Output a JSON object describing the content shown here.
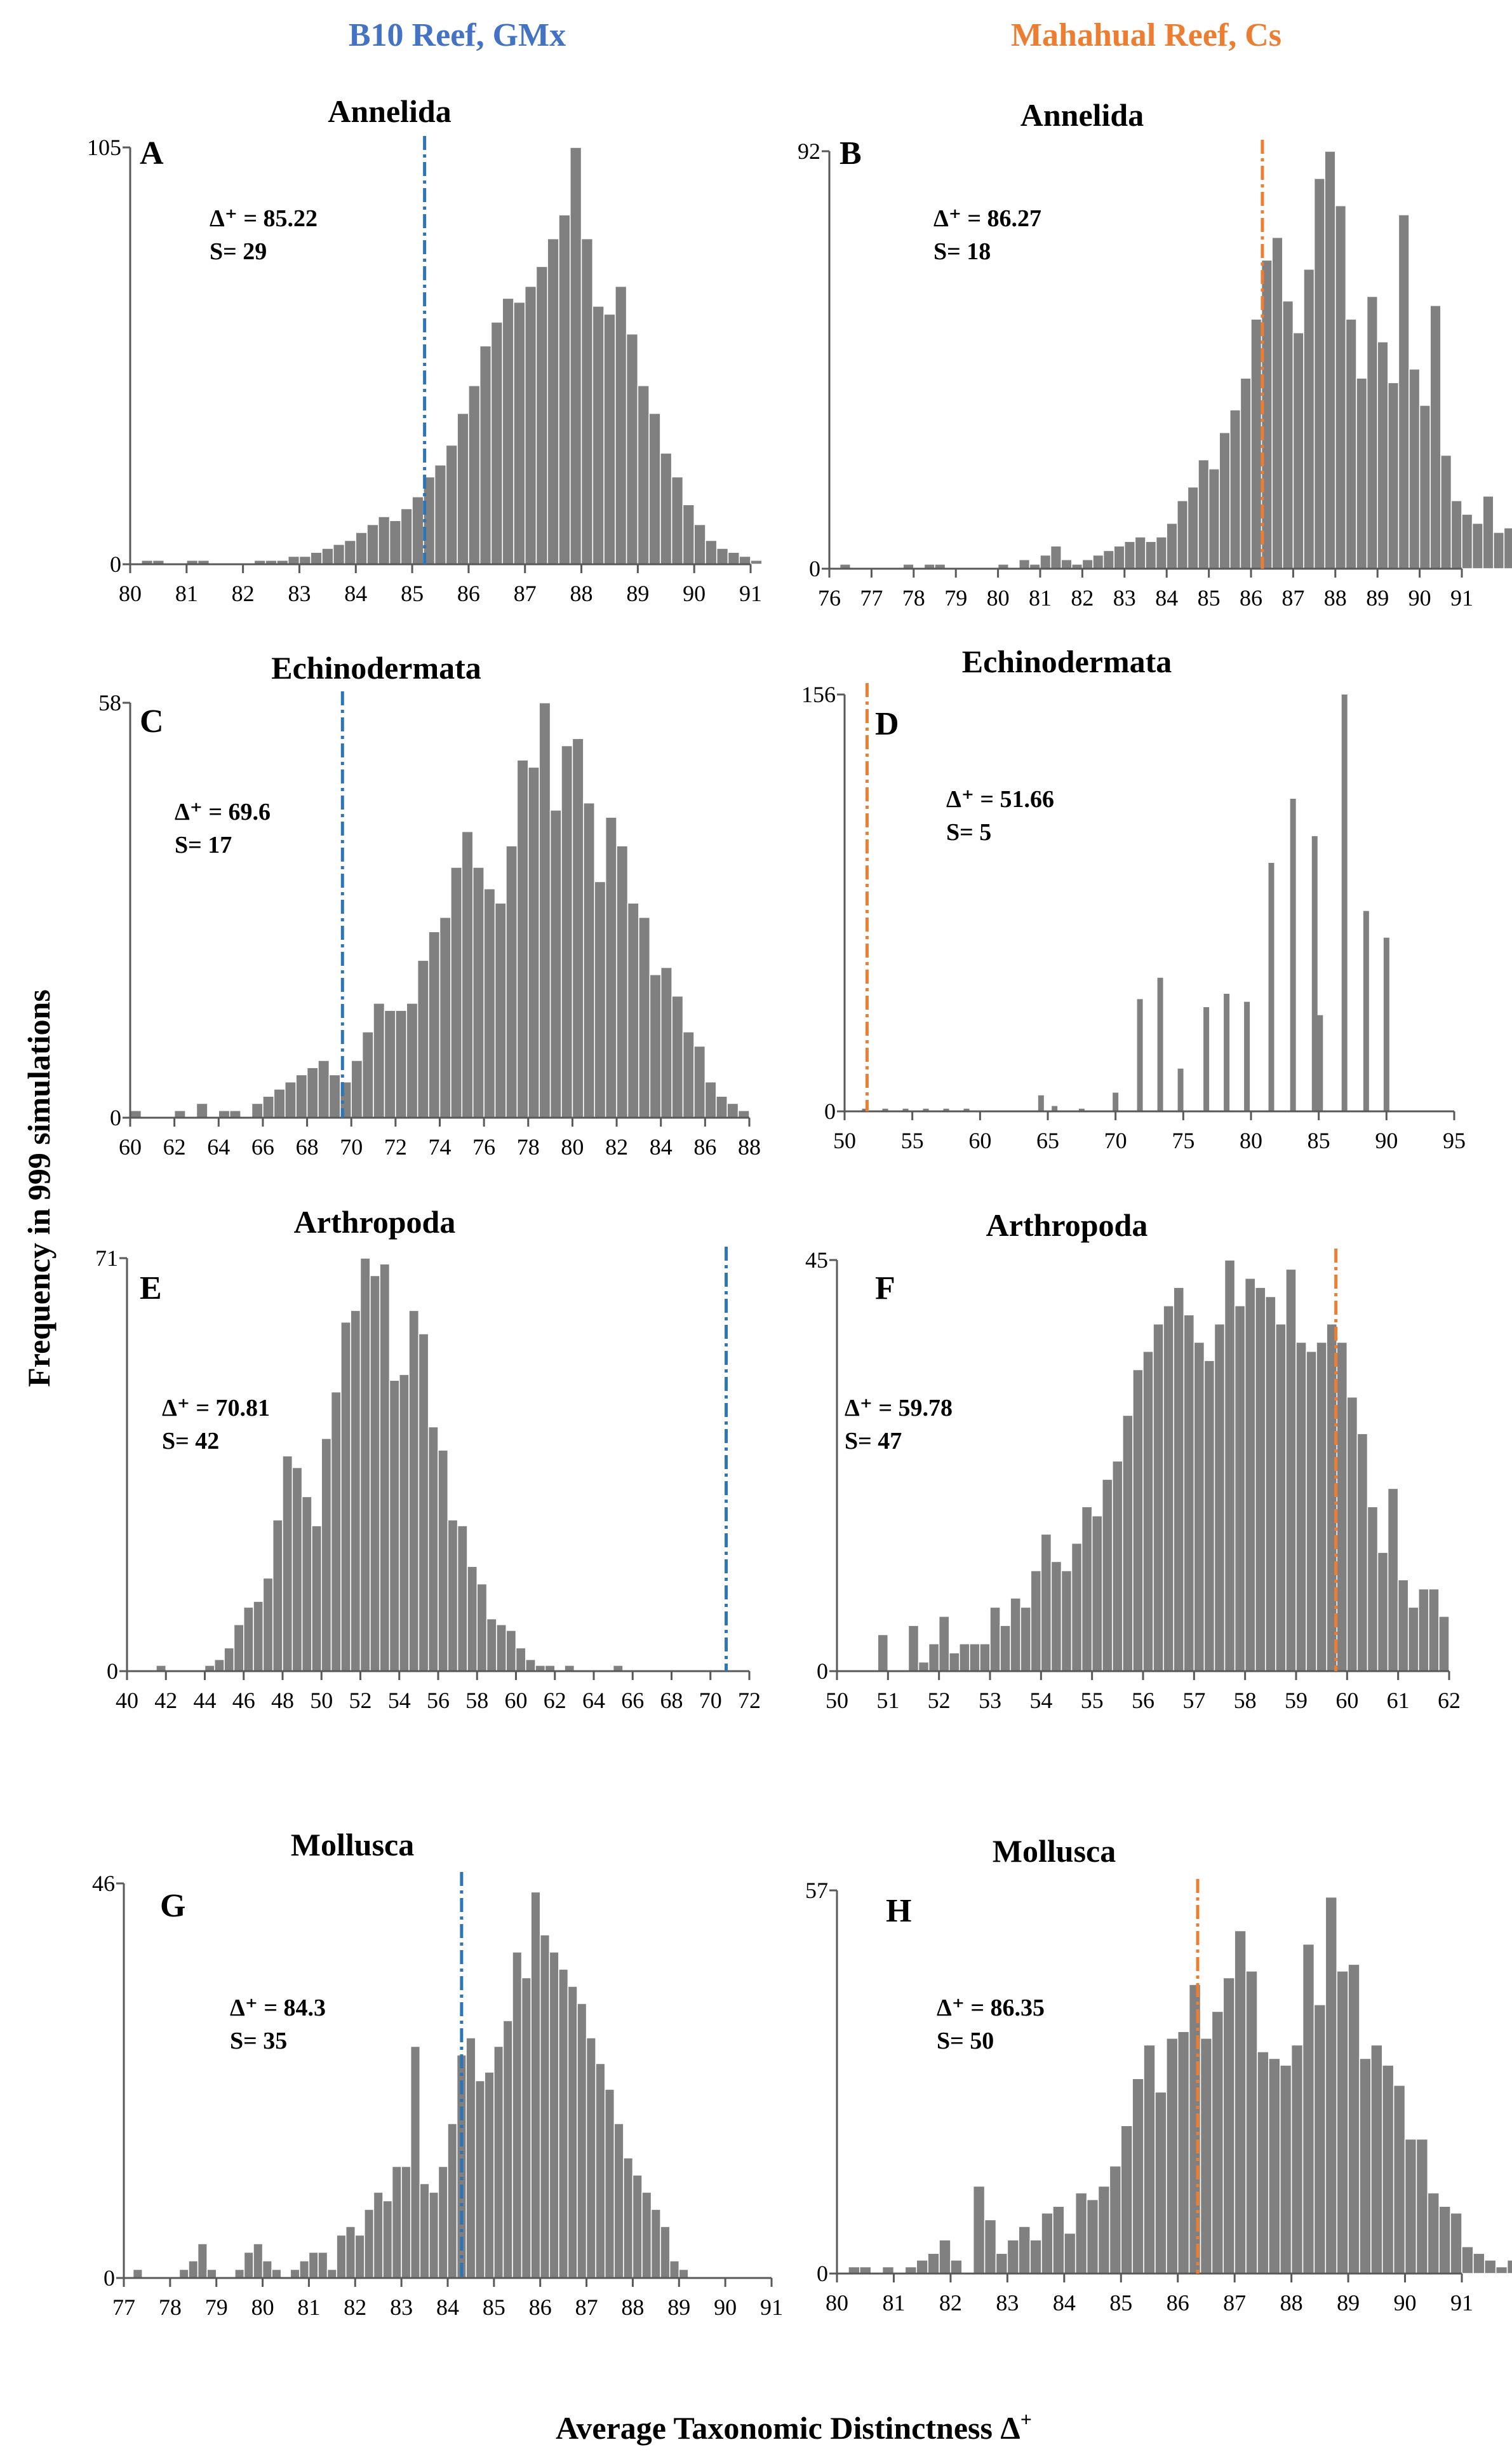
{
  "figure": {
    "left_header": "B10 Reef, GMx",
    "right_header": "Mahahual Reef, Cs",
    "y_label": "Frequency in 999 simulations",
    "x_label": "Average Taxonomic Distinctness Δ",
    "x_label_sup": "+"
  },
  "colors": {
    "bar": "#808080",
    "bar_edge": "#ffffff",
    "left": "#4472c4",
    "right": "#ed7d31",
    "line_left": "#2e75b6",
    "line_right": "#ed7d31",
    "axis": "#595959"
  },
  "chart_data": [
    {
      "id": "A",
      "type": "bar",
      "title": "Annelida",
      "delta_text": "Δ⁺ = 85.22",
      "s_text": "S= 29",
      "observed": 85.22,
      "xlim": [
        80,
        91
      ],
      "ylim": [
        0,
        105
      ],
      "xticks": [
        80,
        81,
        82,
        83,
        84,
        85,
        86,
        87,
        88,
        89,
        90,
        91
      ],
      "yticks": [
        0,
        105
      ],
      "bin_start": 80.0,
      "bin_width": 0.2,
      "values": [
        0,
        1,
        1,
        0,
        0,
        1,
        1,
        0,
        0,
        0,
        0,
        1,
        1,
        1,
        2,
        2,
        3,
        4,
        5,
        6,
        8,
        10,
        12,
        11,
        14,
        17,
        22,
        25,
        30,
        38,
        45,
        55,
        61,
        67,
        66,
        70,
        75,
        82,
        88,
        105,
        82,
        65,
        63,
        70,
        58,
        45,
        38,
        28,
        22,
        15,
        10,
        6,
        4,
        3,
        2,
        1,
        0
      ]
    },
    {
      "id": "B",
      "type": "bar",
      "title": "Annelida",
      "delta_text": "Δ⁺ = 86.27",
      "s_text": "S= 18",
      "observed": 86.27,
      "xlim": [
        76,
        91
      ],
      "ylim": [
        0,
        92
      ],
      "xticks": [
        76,
        77,
        78,
        79,
        80,
        81,
        82,
        83,
        84,
        85,
        86,
        87,
        88,
        89,
        90,
        91
      ],
      "yticks": [
        0,
        92
      ],
      "bin_start": 76.0,
      "bin_width": 0.25,
      "values": [
        0,
        1,
        0,
        0,
        0,
        0,
        0,
        1,
        0,
        1,
        1,
        0,
        0,
        0,
        0,
        0,
        1,
        0,
        2,
        1,
        3,
        5,
        2,
        1,
        2,
        3,
        4,
        5,
        6,
        7,
        6,
        7,
        10,
        15,
        18,
        24,
        22,
        30,
        35,
        42,
        55,
        68,
        73,
        59,
        52,
        66,
        86,
        92,
        80,
        55,
        42,
        60,
        50,
        41,
        78,
        44,
        36,
        58,
        25,
        15,
        12,
        10,
        16,
        8,
        9,
        3,
        0
      ]
    },
    {
      "id": "C",
      "type": "bar",
      "title": "Echinodermata",
      "delta_text": "Δ⁺ = 69.6",
      "s_text": "S= 17",
      "observed": 69.6,
      "xlim": [
        60,
        88
      ],
      "ylim": [
        0,
        58
      ],
      "xticks": [
        60,
        62,
        64,
        66,
        68,
        70,
        72,
        74,
        76,
        78,
        80,
        82,
        84,
        86,
        88
      ],
      "yticks": [
        0,
        58
      ],
      "bin_start": 60.0,
      "bin_width": 0.5,
      "values": [
        1,
        0,
        0,
        0,
        1,
        0,
        2,
        0,
        1,
        1,
        0,
        2,
        3,
        4,
        5,
        6,
        7,
        8,
        6,
        5,
        8,
        12,
        16,
        15,
        15,
        16,
        22,
        26,
        28,
        35,
        40,
        35,
        32,
        30,
        38,
        50,
        49,
        58,
        43,
        52,
        53,
        44,
        33,
        42,
        38,
        30,
        28,
        20,
        21,
        17,
        12,
        10,
        5,
        3,
        2,
        1,
        0
      ]
    },
    {
      "id": "D",
      "type": "bar",
      "title": "Echinodermata",
      "delta_text": "Δ⁺ = 51.66",
      "s_text": "S= 5",
      "observed": 51.66,
      "xlim": [
        50,
        95
      ],
      "ylim": [
        0,
        156
      ],
      "xticks": [
        50,
        55,
        60,
        65,
        70,
        75,
        80,
        85,
        90,
        95
      ],
      "yticks": [
        0,
        156
      ],
      "bars": [
        {
          "x": 51.5,
          "v": 1
        },
        {
          "x": 53,
          "v": 1
        },
        {
          "x": 54.5,
          "v": 1
        },
        {
          "x": 56,
          "v": 1
        },
        {
          "x": 57.5,
          "v": 1
        },
        {
          "x": 59,
          "v": 1
        },
        {
          "x": 64.5,
          "v": 6
        },
        {
          "x": 65.5,
          "v": 2
        },
        {
          "x": 67.5,
          "v": 1
        },
        {
          "x": 70,
          "v": 7
        },
        {
          "x": 71.8,
          "v": 42
        },
        {
          "x": 73.3,
          "v": 50
        },
        {
          "x": 74.8,
          "v": 16
        },
        {
          "x": 76.7,
          "v": 39
        },
        {
          "x": 78.2,
          "v": 44
        },
        {
          "x": 79.7,
          "v": 41
        },
        {
          "x": 81.5,
          "v": 93
        },
        {
          "x": 83.1,
          "v": 117
        },
        {
          "x": 84.7,
          "v": 103
        },
        {
          "x": 85.1,
          "v": 36
        },
        {
          "x": 86.9,
          "v": 156
        },
        {
          "x": 88.5,
          "v": 75
        },
        {
          "x": 90.0,
          "v": 65
        }
      ]
    },
    {
      "id": "E",
      "type": "bar",
      "title": "Arthropoda",
      "delta_text": "Δ⁺ = 70.81",
      "s_text": "S= 42",
      "observed": 70.81,
      "xlim": [
        40,
        72
      ],
      "ylim": [
        0,
        71
      ],
      "xticks": [
        40,
        42,
        44,
        46,
        48,
        50,
        52,
        54,
        56,
        58,
        60,
        62,
        64,
        66,
        68,
        70,
        72
      ],
      "yticks": [
        0,
        71
      ],
      "bin_start": 40.0,
      "bin_width": 0.5,
      "values": [
        0,
        0,
        0,
        1,
        0,
        0,
        0,
        0,
        1,
        2,
        4,
        8,
        11,
        12,
        16,
        26,
        37,
        35,
        30,
        25,
        40,
        48,
        60,
        62,
        71,
        68,
        70,
        50,
        51,
        62,
        58,
        42,
        38,
        26,
        25,
        18,
        15,
        9,
        8,
        7,
        4,
        2,
        1,
        1,
        0,
        1,
        0,
        0,
        0,
        0,
        1,
        0,
        0,
        0,
        0,
        0,
        0,
        0,
        0,
        0,
        0,
        0,
        0
      ]
    },
    {
      "id": "F",
      "type": "bar",
      "title": "Arthropoda",
      "delta_text": "Δ⁺ = 59.78",
      "s_text": "S= 47",
      "observed": 59.78,
      "xlim": [
        50,
        62
      ],
      "ylim": [
        0,
        45
      ],
      "xticks": [
        50,
        51,
        52,
        53,
        54,
        55,
        56,
        57,
        58,
        59,
        60,
        61,
        62
      ],
      "yticks": [
        0,
        45
      ],
      "bin_start": 50.0,
      "bin_width": 0.2,
      "values": [
        0,
        0,
        0,
        0,
        0,
        0,
        0,
        0,
        0,
        0,
        0,
        0,
        0,
        0,
        0,
        0,
        0,
        0,
        0,
        0,
        0,
        0,
        0,
        0,
        0,
        0,
        0,
        0,
        0,
        0,
        0,
        0,
        0,
        0,
        0,
        0,
        0,
        0,
        0,
        0,
        0,
        0,
        0,
        0,
        0,
        0,
        0,
        0,
        0,
        0,
        0,
        0,
        0,
        0,
        0,
        0,
        0,
        0,
        0,
        0
      ]
    },
    {
      "id": "G",
      "type": "bar",
      "title": "Mollusca",
      "delta_text": "Δ⁺ = 84.3",
      "s_text": "S= 35",
      "observed": 84.3,
      "xlim": [
        77,
        91
      ],
      "ylim": [
        0,
        46
      ],
      "xticks": [
        77,
        78,
        79,
        80,
        81,
        82,
        83,
        84,
        85,
        86,
        87,
        88,
        89,
        90,
        91
      ],
      "yticks": [
        0,
        46
      ],
      "bin_start": 77.0,
      "bin_width": 0.2,
      "values": [
        0,
        1,
        0,
        0,
        0,
        0,
        1,
        2,
        4,
        1,
        0,
        0,
        1,
        3,
        4,
        2,
        1,
        0,
        1,
        2,
        3,
        3,
        1,
        5,
        6,
        5,
        8,
        10,
        9,
        13,
        13,
        27,
        11,
        10,
        13,
        18,
        26,
        28,
        23,
        24,
        27,
        30,
        38,
        35,
        45,
        40,
        38,
        36,
        34,
        32,
        28,
        25,
        22,
        18,
        14,
        12,
        10,
        8,
        6,
        2,
        1
      ]
    },
    {
      "id": "H",
      "type": "bar",
      "title": "Mollusca",
      "delta_text": "Δ⁺ = 86.35",
      "s_text": "S= 50",
      "observed": 86.35,
      "xlim": [
        80,
        91
      ],
      "ylim": [
        0,
        57
      ],
      "xticks": [
        80,
        81,
        82,
        83,
        84,
        85,
        86,
        87,
        88,
        89,
        90,
        91
      ],
      "yticks": [
        0,
        57
      ],
      "bin_start": 80.0,
      "bin_width": 0.2,
      "values": [
        0,
        1,
        1,
        0,
        1,
        0,
        1,
        2,
        3,
        5,
        2,
        0,
        13,
        8,
        3,
        5,
        7,
        5,
        9,
        10,
        6,
        12,
        11,
        13,
        16,
        22,
        29,
        34,
        27,
        35,
        36,
        43,
        35,
        39,
        44,
        51,
        45,
        33,
        32,
        31,
        34,
        49,
        40,
        56,
        45,
        46,
        32,
        34,
        31,
        28,
        20,
        20,
        12,
        10,
        9,
        4,
        3,
        2,
        1,
        2
      ]
    }
  ]
}
